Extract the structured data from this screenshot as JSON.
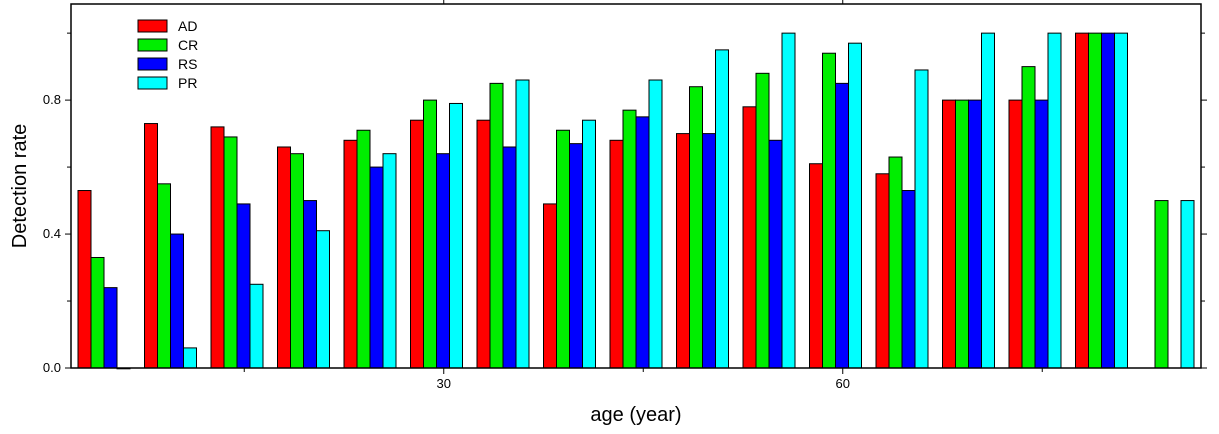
{
  "chart_data": {
    "type": "bar",
    "title": "",
    "xlabel": "age (year)",
    "ylabel": "Detection rate",
    "ylim": [
      0.0,
      1.0
    ],
    "y_ticks": [
      0.0,
      0.4,
      0.8
    ],
    "y_tick_labels": [
      "0.0",
      "0.4",
      "0.8"
    ],
    "x_tick_labels": [
      {
        "group_index": 5.5,
        "label": "30"
      },
      {
        "group_index": 11.5,
        "label": "60"
      }
    ],
    "legend_position": "top-left",
    "grid": false,
    "colors": {
      "AD": "#ff0000",
      "CR": "#00ee00",
      "RS": "#0000ff",
      "PR": "#00ffff"
    },
    "groups": 17,
    "series": [
      {
        "name": "AD",
        "values": [
          0.53,
          0.73,
          0.72,
          0.66,
          0.68,
          0.74,
          0.74,
          0.49,
          0.68,
          0.7,
          0.78,
          0.61,
          0.58,
          0.8,
          0.8,
          1.0,
          null
        ]
      },
      {
        "name": "CR",
        "values": [
          0.33,
          0.55,
          0.69,
          0.64,
          0.71,
          0.8,
          0.85,
          0.71,
          0.77,
          0.84,
          0.88,
          0.94,
          0.63,
          0.8,
          0.9,
          1.0,
          0.5
        ]
      },
      {
        "name": "RS",
        "values": [
          0.24,
          0.4,
          0.49,
          0.5,
          0.6,
          0.64,
          0.66,
          0.67,
          0.75,
          0.7,
          0.68,
          0.85,
          0.53,
          0.8,
          0.8,
          1.0,
          null
        ]
      },
      {
        "name": "PR",
        "values": [
          0.0,
          0.06,
          0.25,
          0.41,
          0.64,
          0.79,
          0.86,
          0.74,
          0.86,
          0.95,
          1.0,
          0.97,
          0.89,
          1.0,
          1.0,
          1.0,
          0.5
        ]
      }
    ]
  }
}
